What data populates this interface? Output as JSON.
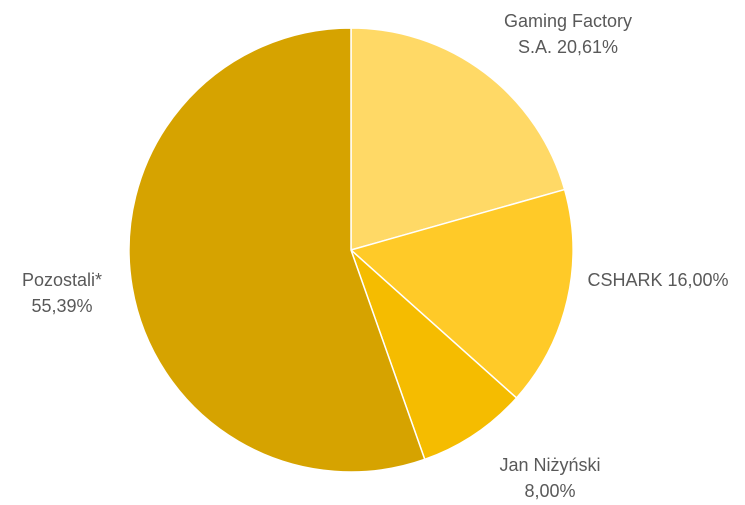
{
  "chart_data": {
    "type": "pie",
    "title": "",
    "start": "12 o'clock",
    "direction": "clockwise",
    "slices": [
      {
        "name": "Gaming Factory",
        "name2": "S.A. 20,61%",
        "value": 20.61,
        "color": "#FFD966"
      },
      {
        "name": "CSHARK 16,00%",
        "name2": "",
        "value": 16.0,
        "color": "#FFCA28"
      },
      {
        "name": "Jan Niżyński",
        "name2": "8,00%",
        "value": 8.0,
        "color": "#F5BC00"
      },
      {
        "name": "Pozostali*",
        "name2": "55,39%",
        "value": 55.39,
        "color": "#D6A300"
      }
    ]
  }
}
